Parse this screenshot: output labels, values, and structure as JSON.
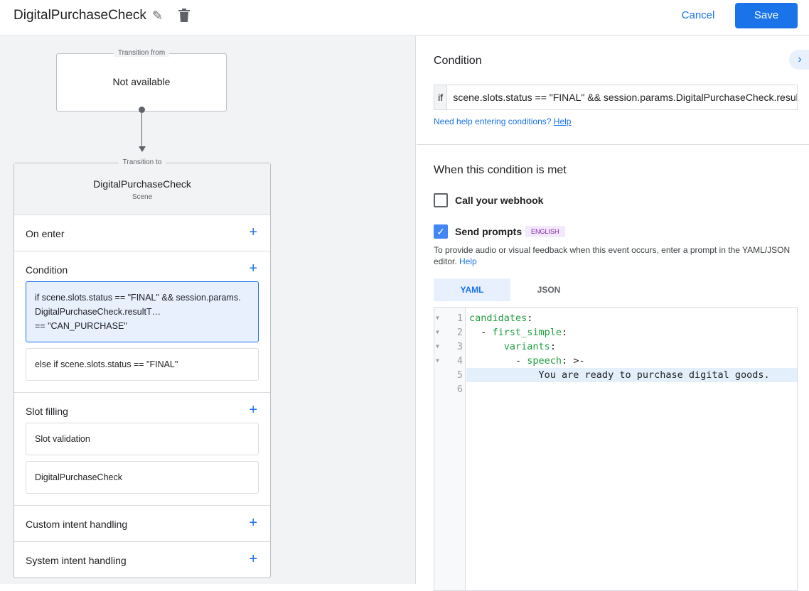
{
  "header": {
    "title": "DigitalPurchaseCheck",
    "cancel_label": "Cancel",
    "save_label": "Save"
  },
  "flow": {
    "from_label": "Transition from",
    "from_value": "Not available",
    "to_label": "Transition to",
    "scene_name": "DigitalPurchaseCheck",
    "scene_type": "Scene",
    "sections": {
      "on_enter": "On enter",
      "condition": "Condition",
      "conditions": [
        "if scene.slots.status == \"FINAL\" && session.params.DigitalPurchaseCheck.resultT…",
        "== \"CAN_PURCHASE\"",
        "else if scene.slots.status == \"FINAL\""
      ],
      "slot_filling": "Slot filling",
      "slots": [
        "Slot validation",
        "DigitalPurchaseCheck"
      ],
      "custom_intent": "Custom intent handling",
      "system_intent": "System intent handling"
    }
  },
  "panel": {
    "condition_title": "Condition",
    "if_label": "if",
    "condition_value": "scene.slots.status == \"FINAL\" && session.params.DigitalPurchaseCheck.resultType == \"CAN_PURCHASE\"",
    "help_text": "Need help entering conditions?",
    "help_link": "Help",
    "met_title": "When this condition is met",
    "webhook_label": "Call your webhook",
    "webhook_checked": false,
    "prompts_label": "Send prompts",
    "prompts_checked": true,
    "language_badge": "ENGLISH",
    "prompt_desc": "To provide audio or visual feedback when this event occurs, enter a prompt in the YAML/JSON editor.",
    "prompt_help": "Help",
    "tabs": [
      "YAML",
      "JSON"
    ],
    "active_tab": "YAML",
    "code_lines": [
      "1",
      "2",
      "3",
      "4",
      "5",
      "6"
    ]
  },
  "colors": {
    "accent": "#1a73e8",
    "badge": "#7b1fa2",
    "yaml_key": "#1e9e3e"
  }
}
